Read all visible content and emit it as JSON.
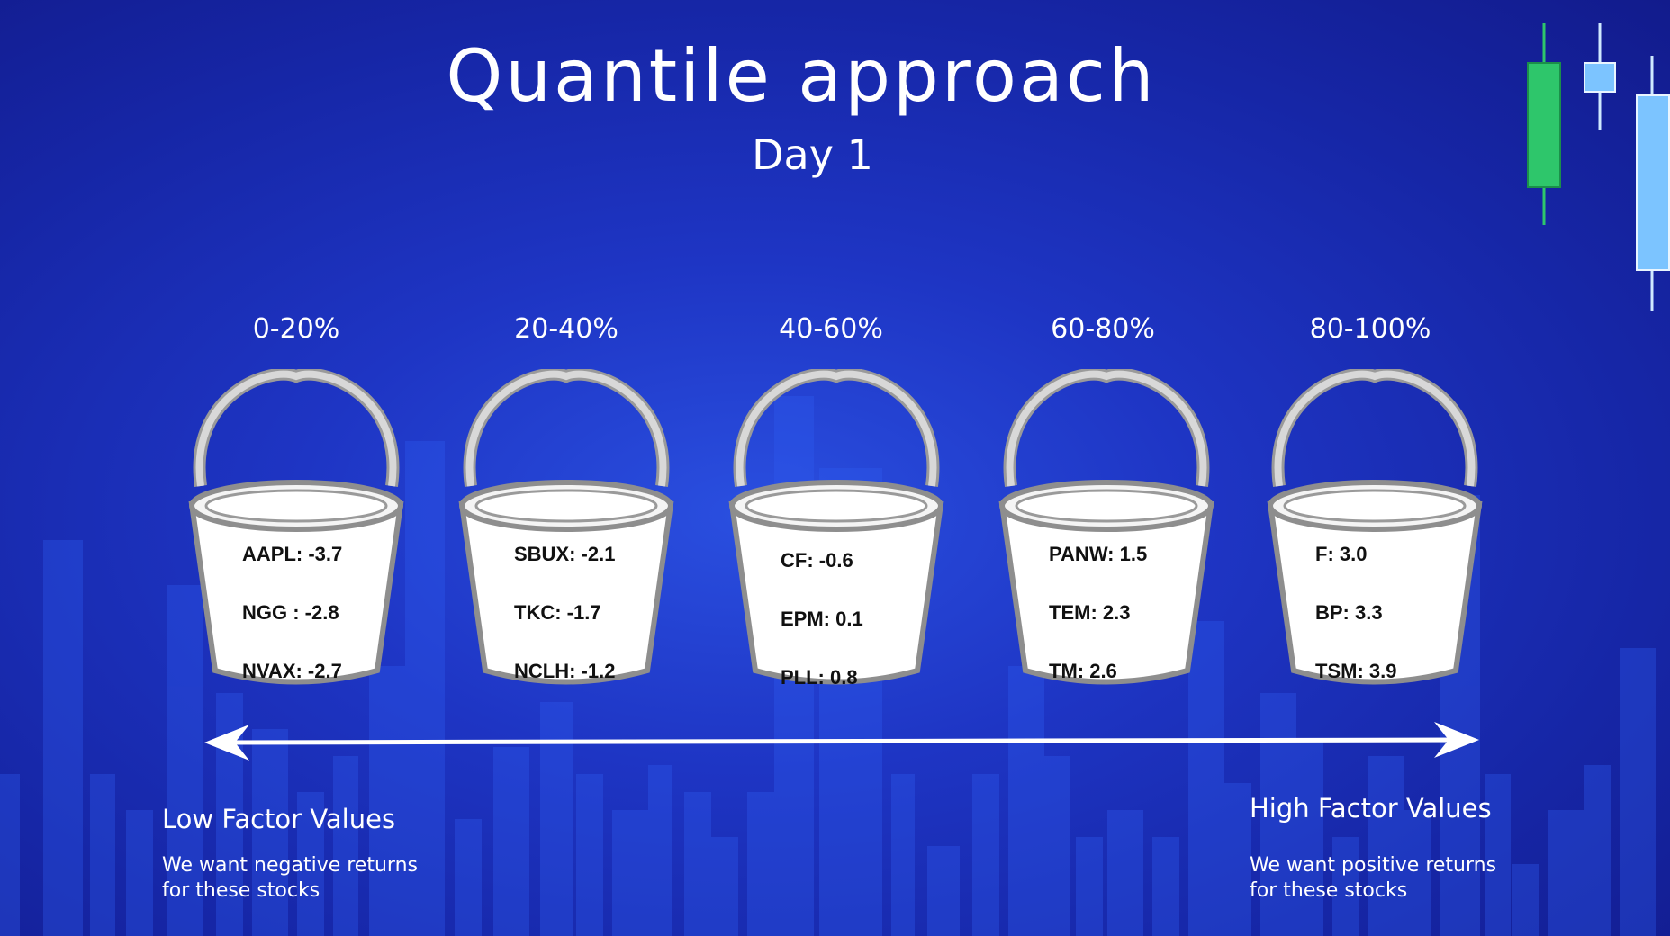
{
  "title": "Quantile approach",
  "subtitle": "Day 1",
  "buckets": [
    {
      "range": "0-20%",
      "stocks": [
        "AAPL: -3.7",
        "NGG : -2.8",
        "NVAX: -2.7"
      ]
    },
    {
      "range": "20-40%",
      "stocks": [
        "SBUX: -2.1",
        "TKC: -1.7",
        "NCLH: -1.2"
      ]
    },
    {
      "range": "40-60%",
      "stocks": [
        "CF: -0.6",
        "EPM: 0.1",
        "PLL: 0.8"
      ]
    },
    {
      "range": "60-80%",
      "stocks": [
        "PANW: 1.5",
        "TEM: 2.3",
        "TM: 2.6"
      ]
    },
    {
      "range": "80-100%",
      "stocks": [
        "F: 3.0",
        "BP: 3.3",
        "TSM: 3.9"
      ]
    }
  ],
  "left_label": {
    "title": "Low Factor Values",
    "note": "We want negative returns for these stocks"
  },
  "right_label": {
    "title": "High Factor Values",
    "note": "We want positive returns for these stocks"
  },
  "colors": {
    "candle_green": "#2ec66b",
    "candle_blue": "#7cc4ff",
    "background": "#1a2bb0"
  }
}
